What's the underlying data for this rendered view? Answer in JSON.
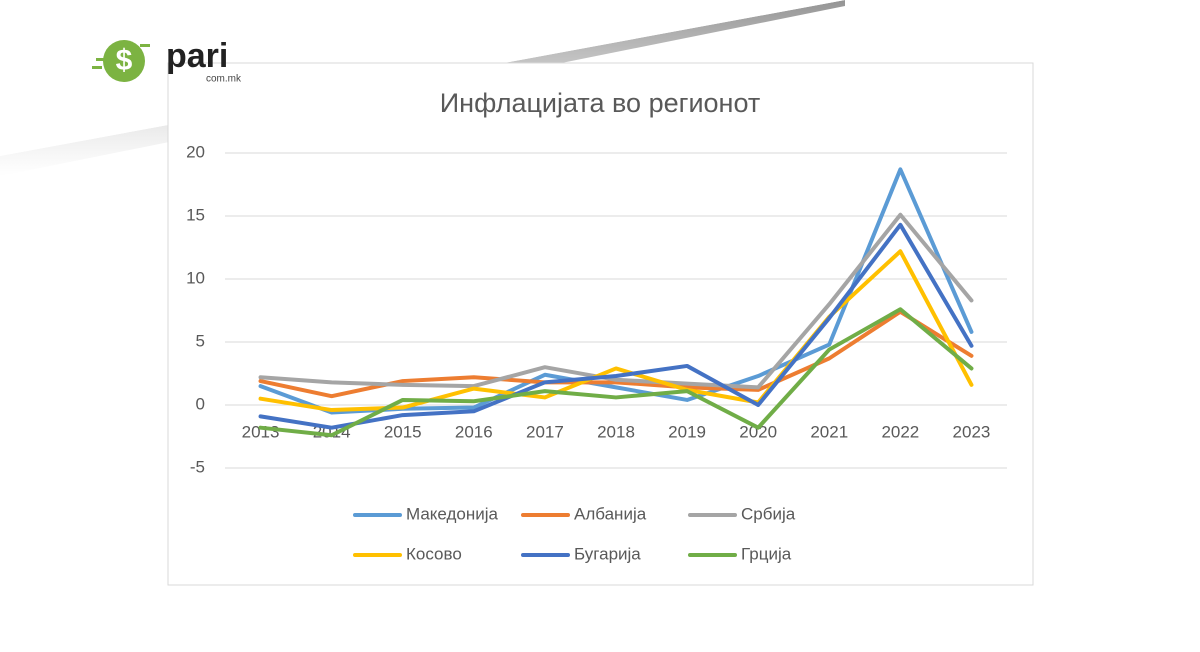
{
  "logo": {
    "name": "pari",
    "domain": "com.mk"
  },
  "chart_data": {
    "type": "line",
    "title": "Инфлацијата во регионот",
    "categories": [
      "2013",
      "2014",
      "2015",
      "2016",
      "2017",
      "2018",
      "2019",
      "2020",
      "2021",
      "2022",
      "2023"
    ],
    "series": [
      {
        "name": "Македонија",
        "color": "#5b9bd5",
        "values": [
          1.5,
          -0.6,
          -0.3,
          -0.2,
          2.4,
          1.4,
          0.4,
          2.3,
          4.8,
          18.7,
          5.8
        ]
      },
      {
        "name": "Албанија",
        "color": "#ed7d31",
        "values": [
          1.9,
          0.7,
          1.9,
          2.2,
          1.8,
          1.8,
          1.4,
          1.2,
          3.7,
          7.4,
          3.9
        ]
      },
      {
        "name": "Србија",
        "color": "#a5a5a5",
        "values": [
          2.2,
          1.8,
          1.6,
          1.5,
          3.0,
          2.0,
          1.7,
          1.4,
          8.0,
          15.1,
          8.3
        ]
      },
      {
        "name": "Косово",
        "color": "#ffc000",
        "values": [
          0.5,
          -0.4,
          -0.2,
          1.3,
          0.6,
          2.9,
          1.2,
          0.2,
          7.0,
          12.2,
          1.6
        ]
      },
      {
        "name": "Бугарија",
        "color": "#4472c4",
        "values": [
          -0.9,
          -1.8,
          -0.8,
          -0.5,
          1.8,
          2.3,
          3.1,
          0.0,
          6.9,
          14.3,
          4.7
        ]
      },
      {
        "name": "Грција",
        "color": "#70ad47",
        "values": [
          -1.8,
          -2.4,
          0.4,
          0.3,
          1.1,
          0.6,
          1.1,
          -1.8,
          4.4,
          7.6,
          2.9
        ]
      }
    ],
    "ylim": [
      -5,
      20
    ],
    "yticks": [
      -5,
      0,
      5,
      10,
      15,
      20
    ],
    "grid": true,
    "legend": "bottom"
  }
}
